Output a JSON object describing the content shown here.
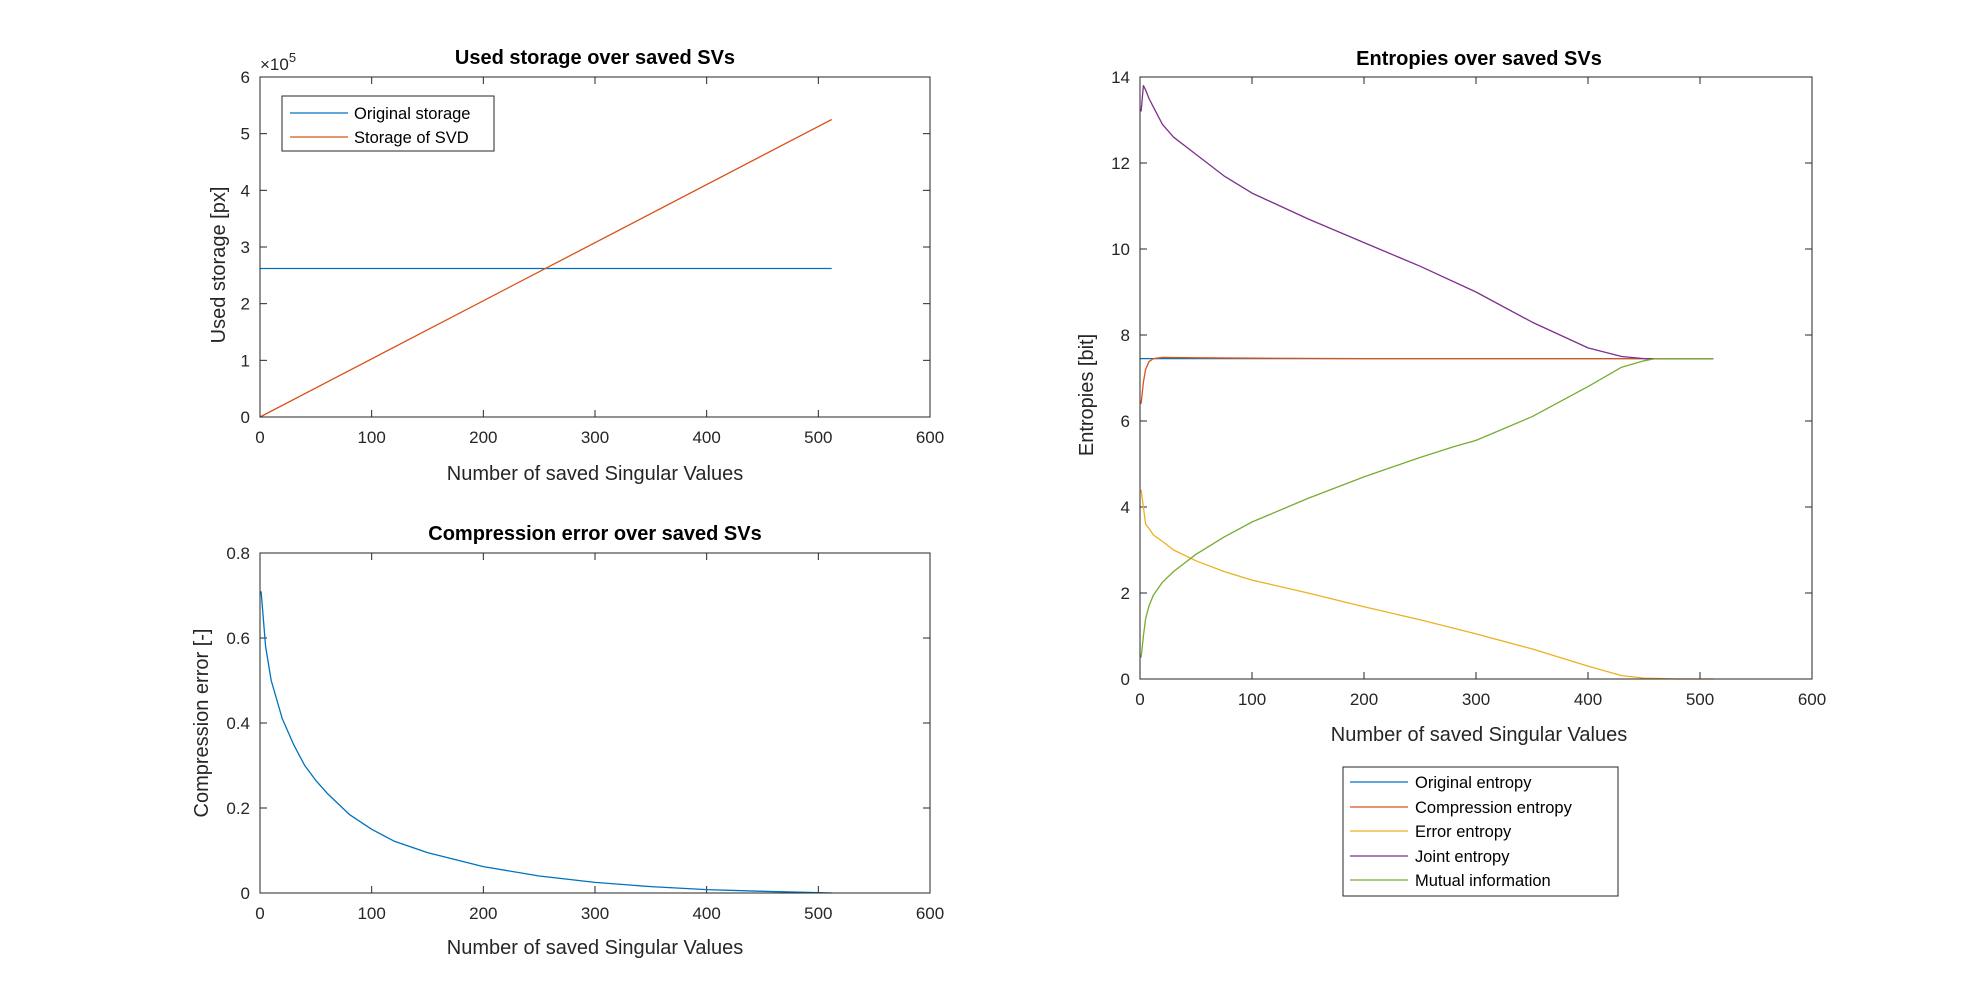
{
  "figure": {
    "background": "#ffffff",
    "axis_color": "#262626"
  },
  "chart_data": [
    {
      "id": "storage",
      "type": "line",
      "title": "Used storage over saved SVs",
      "xlabel": "Number of saved Singular Values",
      "ylabel": "Used storage [px]",
      "xlim": [
        0,
        600
      ],
      "ylim": [
        0,
        6
      ],
      "y_exponent": "×10",
      "y_exponent_power": "5",
      "xticks": [
        0,
        100,
        200,
        300,
        400,
        500,
        600
      ],
      "yticks": [
        0,
        1,
        2,
        3,
        4,
        5,
        6
      ],
      "legend_placement": "top-left",
      "series": [
        {
          "name": "Original storage",
          "color": "#0072BD",
          "x": [
            0,
            512
          ],
          "y": [
            2.62,
            2.62
          ]
        },
        {
          "name": "Storage of SVD",
          "color": "#D95319",
          "x": [
            0,
            512
          ],
          "y": [
            0,
            5.25
          ]
        }
      ]
    },
    {
      "id": "error",
      "type": "line",
      "title": "Compression error over saved SVs",
      "xlabel": "Number of saved Singular Values",
      "ylabel": "Compression error [-]",
      "xlim": [
        0,
        600
      ],
      "ylim": [
        0,
        0.8
      ],
      "xticks": [
        0,
        100,
        200,
        300,
        400,
        500,
        600
      ],
      "yticks": [
        0,
        0.2,
        0.4,
        0.6,
        0.8
      ],
      "series": [
        {
          "color": "#0072BD",
          "x": [
            1,
            5,
            10,
            20,
            30,
            40,
            50,
            60,
            80,
            100,
            120,
            150,
            200,
            250,
            300,
            350,
            400,
            450,
            500,
            512
          ],
          "y": [
            0.71,
            0.58,
            0.5,
            0.41,
            0.35,
            0.3,
            0.265,
            0.235,
            0.185,
            0.15,
            0.122,
            0.095,
            0.062,
            0.04,
            0.025,
            0.015,
            0.008,
            0.004,
            0.001,
            0
          ]
        }
      ]
    },
    {
      "id": "entropies",
      "type": "line",
      "title": "Entropies over saved SVs",
      "xlabel": "Number of saved Singular Values",
      "ylabel": "Entropies [bit]",
      "xlim": [
        0,
        600
      ],
      "ylim": [
        0,
        14
      ],
      "xticks": [
        0,
        100,
        200,
        300,
        400,
        500,
        600
      ],
      "yticks": [
        0,
        2,
        4,
        6,
        8,
        10,
        12,
        14
      ],
      "legend_placement": "below",
      "series": [
        {
          "name": "Original entropy",
          "color": "#0072BD",
          "x": [
            0,
            512
          ],
          "y": [
            7.45,
            7.45
          ]
        },
        {
          "name": "Compression entropy",
          "color": "#D95319",
          "x": [
            1,
            3,
            5,
            8,
            12,
            20,
            50,
            100,
            200,
            300,
            400,
            512
          ],
          "y": [
            6.4,
            6.9,
            7.2,
            7.38,
            7.45,
            7.48,
            7.47,
            7.46,
            7.45,
            7.45,
            7.45,
            7.45
          ]
        },
        {
          "name": "Error entropy",
          "color": "#EDB120",
          "x": [
            1,
            3,
            5,
            8,
            12,
            20,
            30,
            50,
            75,
            100,
            150,
            200,
            250,
            300,
            350,
            400,
            430,
            450,
            480,
            512
          ],
          "y": [
            4.4,
            4.0,
            3.6,
            3.5,
            3.35,
            3.2,
            3.0,
            2.75,
            2.5,
            2.3,
            2.0,
            1.68,
            1.38,
            1.05,
            0.7,
            0.3,
            0.08,
            0.02,
            0,
            0
          ]
        },
        {
          "name": "Joint entropy",
          "color": "#7E2F8E",
          "x": [
            1,
            3,
            5,
            8,
            12,
            20,
            30,
            50,
            75,
            100,
            150,
            200,
            250,
            300,
            350,
            400,
            430,
            450,
            460,
            512
          ],
          "y": [
            13.2,
            13.8,
            13.7,
            13.5,
            13.3,
            12.9,
            12.6,
            12.2,
            11.7,
            11.3,
            10.7,
            10.15,
            9.6,
            9.0,
            8.3,
            7.7,
            7.5,
            7.45,
            7.45,
            7.45
          ]
        },
        {
          "name": "Mutual information",
          "color": "#77AC30",
          "x": [
            1,
            3,
            5,
            8,
            12,
            20,
            30,
            50,
            75,
            100,
            150,
            200,
            250,
            280,
            300,
            350,
            400,
            430,
            450,
            460,
            512
          ],
          "y": [
            0.5,
            1.0,
            1.4,
            1.7,
            1.95,
            2.25,
            2.5,
            2.9,
            3.3,
            3.65,
            4.2,
            4.7,
            5.15,
            5.4,
            5.55,
            6.1,
            6.8,
            7.25,
            7.4,
            7.45,
            7.45
          ]
        }
      ]
    }
  ]
}
